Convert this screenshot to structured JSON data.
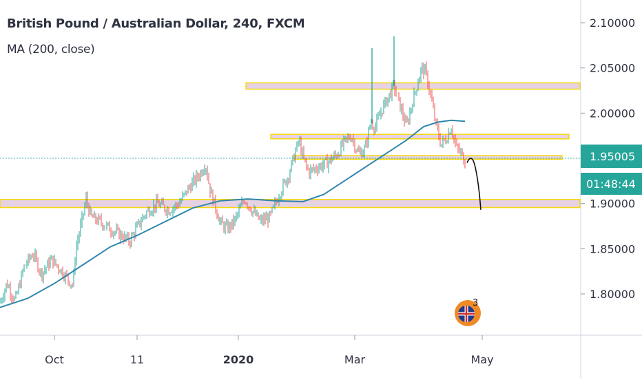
{
  "header": {
    "title": "British Pound / Australian Dollar, 240, FXCM",
    "indicator": "MA (200, close)"
  },
  "price_badge": {
    "price": "1.95005",
    "countdown": "01:48:44"
  },
  "event_badge": {
    "count": "3",
    "flag": "uk-flag-icon"
  },
  "colors": {
    "up": "#26a69a",
    "down": "#ef5350",
    "ma": "#2e86ab",
    "zone_fill": "#e7d2e4",
    "zone_border": "#f5d90a",
    "badge": "#26a69a"
  },
  "chart_data": {
    "type": "candlestick",
    "title": "British Pound / Australian Dollar, 240, FXCM",
    "ylim": [
      1.765,
      2.115
    ],
    "y_ticks": [
      "2.10000",
      "2.05000",
      "2.00000",
      "1.95000",
      "1.90000",
      "1.85000",
      "1.80000"
    ],
    "x_ticks": [
      {
        "label": "Oct",
        "bold": false
      },
      {
        "label": "11",
        "bold": false
      },
      {
        "label": "2020",
        "bold": true
      },
      {
        "label": "Mar",
        "bold": false
      },
      {
        "label": "May",
        "bold": false
      }
    ],
    "current_price": 1.95005,
    "price_path": [
      [
        0,
        1.79
      ],
      [
        10,
        1.812
      ],
      [
        22,
        1.792
      ],
      [
        35,
        1.83
      ],
      [
        48,
        1.845
      ],
      [
        60,
        1.822
      ],
      [
        75,
        1.838
      ],
      [
        90,
        1.825
      ],
      [
        100,
        1.815
      ],
      [
        106,
        1.81
      ],
      [
        110,
        1.85
      ],
      [
        118,
        1.878
      ],
      [
        125,
        1.905
      ],
      [
        132,
        1.885
      ],
      [
        145,
        1.88
      ],
      [
        160,
        1.872
      ],
      [
        175,
        1.865
      ],
      [
        188,
        1.858
      ],
      [
        200,
        1.875
      ],
      [
        212,
        1.89
      ],
      [
        228,
        1.9
      ],
      [
        245,
        1.893
      ],
      [
        260,
        1.9
      ],
      [
        272,
        1.915
      ],
      [
        282,
        1.925
      ],
      [
        292,
        1.935
      ],
      [
        298,
        1.945
      ],
      [
        305,
        1.915
      ],
      [
        312,
        1.898
      ],
      [
        320,
        1.878
      ],
      [
        330,
        1.872
      ],
      [
        340,
        1.88
      ],
      [
        355,
        1.905
      ],
      [
        368,
        1.89
      ],
      [
        378,
        1.88
      ],
      [
        392,
        1.885
      ],
      [
        405,
        1.91
      ],
      [
        418,
        1.93
      ],
      [
        428,
        1.955
      ],
      [
        434,
        1.97
      ],
      [
        440,
        1.95
      ],
      [
        448,
        1.935
      ],
      [
        460,
        1.94
      ],
      [
        475,
        1.945
      ],
      [
        490,
        1.955
      ],
      [
        500,
        1.968
      ],
      [
        510,
        1.975
      ],
      [
        520,
        1.955
      ],
      [
        530,
        1.96
      ],
      [
        538,
        1.99
      ],
      [
        545,
        1.985
      ],
      [
        555,
        2.005
      ],
      [
        565,
        2.02
      ],
      [
        572,
        2.03
      ],
      [
        580,
        2.01
      ],
      [
        590,
        1.985
      ],
      [
        598,
        2.01
      ],
      [
        605,
        2.03
      ],
      [
        612,
        2.05
      ],
      [
        618,
        2.045
      ],
      [
        625,
        2.02
      ],
      [
        632,
        1.99
      ],
      [
        640,
        1.965
      ],
      [
        648,
        1.972
      ],
      [
        655,
        1.985
      ],
      [
        662,
        1.962
      ],
      [
        670,
        1.955
      ],
      [
        675,
        1.945
      ]
    ],
    "spikes": [
      {
        "x": 540,
        "high": 2.072
      },
      {
        "x": 572,
        "high": 2.085
      }
    ],
    "ma_path": [
      [
        0,
        1.785
      ],
      [
        40,
        1.795
      ],
      [
        80,
        1.812
      ],
      [
        120,
        1.832
      ],
      [
        160,
        1.852
      ],
      [
        200,
        1.865
      ],
      [
        240,
        1.88
      ],
      [
        280,
        1.895
      ],
      [
        320,
        1.903
      ],
      [
        360,
        1.905
      ],
      [
        400,
        1.903
      ],
      [
        440,
        1.902
      ],
      [
        470,
        1.91
      ],
      [
        500,
        1.925
      ],
      [
        530,
        1.94
      ],
      [
        560,
        1.955
      ],
      [
        590,
        1.97
      ],
      [
        615,
        1.985
      ],
      [
        635,
        1.99
      ],
      [
        655,
        1.992
      ],
      [
        675,
        1.991
      ]
    ],
    "zones": [
      {
        "x0": 357,
        "x1": 842,
        "y": 2.03,
        "half": 0.0035
      },
      {
        "x0": 393,
        "x1": 826,
        "y": 1.974,
        "half": 0.0025
      },
      {
        "x0": 428,
        "x1": 816,
        "y": 1.951,
        "half": 0.002
      },
      {
        "x0": 0,
        "x1": 842,
        "y": 1.9,
        "half": 0.0045
      }
    ],
    "projection": [
      [
        678,
        1.945
      ],
      [
        685,
        1.948
      ],
      [
        690,
        1.94
      ],
      [
        695,
        1.915
      ],
      [
        698,
        1.893
      ]
    ]
  }
}
